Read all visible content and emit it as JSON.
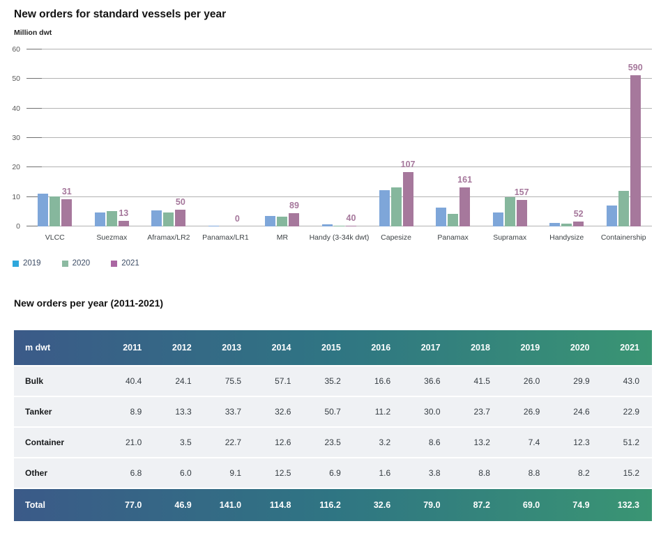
{
  "chart_data": {
    "type": "bar",
    "title": "New orders for standard vessels per year",
    "ylabel": "Million dwt",
    "xlabel": "",
    "ylim": [
      0,
      60
    ],
    "yticks": [
      0,
      10,
      20,
      30,
      40,
      50,
      60
    ],
    "grid": true,
    "legend_position": "bottom-left",
    "categories": [
      "VLCC",
      "Suezmax",
      "Aframax/LR2",
      "Panamax/LR1",
      "MR",
      "Handy (3-34k dwt)",
      "Capesize",
      "Panamax",
      "Supramax",
      "Handysize",
      "Containership"
    ],
    "series": [
      {
        "name": "2019",
        "color": "#7ea6d9",
        "legend_color": "#2ea7dc",
        "values": [
          11.0,
          4.8,
          5.4,
          0.15,
          3.5,
          0.8,
          12.4,
          6.5,
          4.8,
          1.1,
          7.2
        ]
      },
      {
        "name": "2020",
        "color": "#86b79d",
        "legend_color": "#8cbaa1",
        "values": [
          10.1,
          5.2,
          4.7,
          0.0,
          3.3,
          0.3,
          13.3,
          4.3,
          10.0,
          0.9,
          12.1
        ]
      },
      {
        "name": "2021",
        "color": "#a6789c",
        "legend_color": "#aa66a2",
        "values": [
          9.3,
          2.0,
          5.7,
          0.0,
          4.4,
          0.3,
          18.5,
          13.2,
          8.9,
          1.7,
          51.3
        ]
      }
    ],
    "bar_labels": {
      "series": "2021",
      "color": "#a5779b",
      "values": [
        "31",
        "13",
        "50",
        "0",
        "89",
        "40",
        "107",
        "161",
        "157",
        "52",
        "590"
      ]
    },
    "axis_colors": {
      "gridline": "#b2b2b2",
      "tick": "#6f6f6f",
      "ytick_text": "#595959",
      "category_text": "#3d4245"
    }
  },
  "table": {
    "title": "New orders per year (2011-2021)",
    "header": [
      "m dwt",
      "2011",
      "2012",
      "2013",
      "2014",
      "2015",
      "2016",
      "2017",
      "2018",
      "2019",
      "2020",
      "2021"
    ],
    "header_gradient": [
      "#3b5a88",
      "#2f7583",
      "#3a9573"
    ],
    "row_bg": "#eff1f4",
    "rows": [
      {
        "label": "Bulk",
        "values": [
          "40.4",
          "24.1",
          "75.5",
          "57.1",
          "35.2",
          "16.6",
          "36.6",
          "41.5",
          "26.0",
          "29.9",
          "43.0"
        ]
      },
      {
        "label": "Tanker",
        "values": [
          "8.9",
          "13.3",
          "33.7",
          "32.6",
          "50.7",
          "11.2",
          "30.0",
          "23.7",
          "26.9",
          "24.6",
          "22.9"
        ]
      },
      {
        "label": "Container",
        "values": [
          "21.0",
          "3.5",
          "22.7",
          "12.6",
          "23.5",
          "3.2",
          "8.6",
          "13.2",
          "7.4",
          "12.3",
          "51.2"
        ]
      },
      {
        "label": "Other",
        "values": [
          "6.8",
          "6.0",
          "9.1",
          "12.5",
          "6.9",
          "1.6",
          "3.8",
          "8.8",
          "8.8",
          "8.2",
          "15.2"
        ]
      }
    ],
    "total": {
      "label": "Total",
      "values": [
        "77.0",
        "46.9",
        "141.0",
        "114.8",
        "116.2",
        "32.6",
        "79.0",
        "87.2",
        "69.0",
        "74.9",
        "132.3"
      ]
    }
  }
}
